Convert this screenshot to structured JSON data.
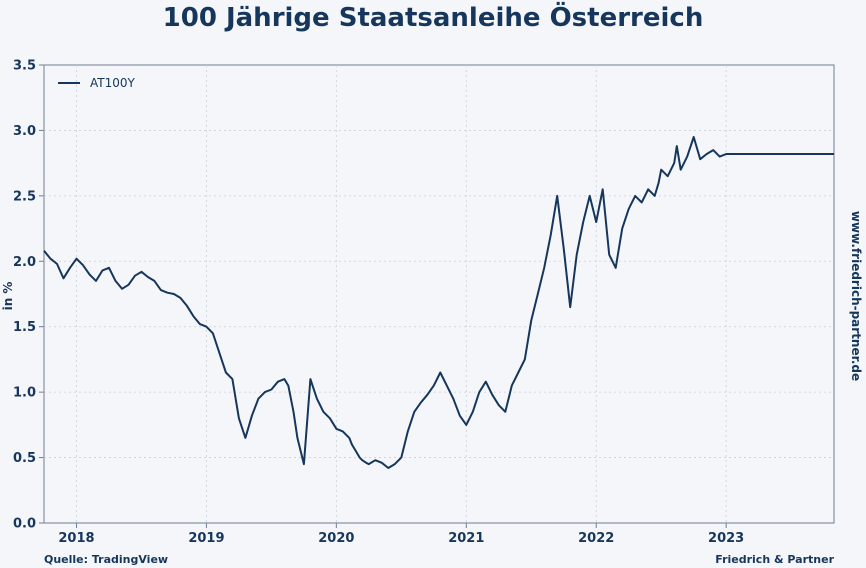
{
  "chart_data": {
    "type": "line",
    "title": "100 Jährige Staatsanleihe Österreich",
    "xlabel": "",
    "ylabel": "in %",
    "xlim": [
      2017.75,
      2023.83
    ],
    "ylim": [
      0.0,
      3.5
    ],
    "x_ticks": [
      2018,
      2019,
      2020,
      2021,
      2022,
      2023
    ],
    "x_tick_labels": [
      "2018",
      "2019",
      "2020",
      "2021",
      "2022",
      "2023"
    ],
    "y_ticks": [
      0.0,
      0.5,
      1.0,
      1.5,
      2.0,
      2.5,
      3.0,
      3.5
    ],
    "y_tick_labels": [
      "0.0",
      "0.5",
      "1.0",
      "1.5",
      "2.0",
      "2.5",
      "3.0",
      "3.5"
    ],
    "grid": true,
    "legend": "top-left",
    "series": [
      {
        "name": "AT100Y",
        "color": "#16365c",
        "x": [
          2017.75,
          2017.8,
          2017.85,
          2017.9,
          2017.95,
          2018.0,
          2018.05,
          2018.1,
          2018.15,
          2018.2,
          2018.25,
          2018.3,
          2018.35,
          2018.4,
          2018.45,
          2018.5,
          2018.55,
          2018.6,
          2018.65,
          2018.7,
          2018.75,
          2018.8,
          2018.85,
          2018.9,
          2018.95,
          2019.0,
          2019.05,
          2019.1,
          2019.15,
          2019.2,
          2019.25,
          2019.3,
          2019.35,
          2019.4,
          2019.45,
          2019.5,
          2019.55,
          2019.6,
          2019.63,
          2019.67,
          2019.7,
          2019.75,
          2019.8,
          2019.85,
          2019.9,
          2019.95,
          2020.0,
          2020.05,
          2020.1,
          2020.12,
          2020.15,
          2020.18,
          2020.2,
          2020.23,
          2020.25,
          2020.3,
          2020.35,
          2020.4,
          2020.45,
          2020.5,
          2020.55,
          2020.6,
          2020.65,
          2020.7,
          2020.75,
          2020.8,
          2020.85,
          2020.9,
          2020.95,
          2021.0,
          2021.05,
          2021.1,
          2021.15,
          2021.2,
          2021.25,
          2021.3,
          2021.35,
          2021.4,
          2021.45,
          2021.5,
          2021.55,
          2021.6,
          2021.65,
          2021.7,
          2021.75,
          2021.8,
          2021.85,
          2021.9,
          2021.95,
          2022.0,
          2022.05,
          2022.1,
          2022.15,
          2022.2,
          2022.25,
          2022.3,
          2022.35,
          2022.4,
          2022.45,
          2022.48,
          2022.5,
          2022.55,
          2022.6,
          2022.62,
          2022.65,
          2022.7,
          2022.75,
          2022.8,
          2022.85,
          2022.9,
          2022.95,
          2023.0,
          2023.05,
          2023.1,
          2023.15,
          2023.2,
          2023.25,
          2023.3,
          2023.35,
          2023.4,
          2023.45,
          2023.5,
          2023.55,
          2023.6,
          2023.65,
          2023.7,
          2023.75,
          2023.78,
          2023.8,
          2023.83
        ],
        "values": [
          2.08,
          2.02,
          1.98,
          1.87,
          1.95,
          2.02,
          1.97,
          1.9,
          1.85,
          1.93,
          1.95,
          1.85,
          1.79,
          1.82,
          1.89,
          1.92,
          1.88,
          1.85,
          1.78,
          1.76,
          1.75,
          1.72,
          1.66,
          1.58,
          1.52,
          1.5,
          1.45,
          1.3,
          1.15,
          1.1,
          0.8,
          0.65,
          0.82,
          0.95,
          1.0,
          1.02,
          1.08,
          1.1,
          1.05,
          0.85,
          0.65,
          0.45,
          1.1,
          0.95,
          0.85,
          0.8,
          0.72,
          0.7,
          0.65,
          0.6,
          0.55,
          0.5,
          0.48,
          0.46,
          0.45,
          0.48,
          0.46,
          0.42,
          0.45,
          0.5,
          0.7,
          0.85,
          0.92,
          0.98,
          1.05,
          1.15,
          1.05,
          0.95,
          0.82,
          0.75,
          0.85,
          1.0,
          1.08,
          0.98,
          0.9,
          0.85,
          1.05,
          1.15,
          1.25,
          1.55,
          1.75,
          1.95,
          2.2,
          2.5,
          2.1,
          1.65,
          2.05,
          2.3,
          2.5,
          2.3,
          2.55,
          2.05,
          1.95,
          2.25,
          2.4,
          2.5,
          2.45,
          2.55,
          2.5,
          2.6,
          2.7,
          2.65,
          2.75,
          2.88,
          2.7,
          2.8,
          2.95,
          2.78,
          2.82,
          2.85,
          2.8,
          2.82,
          2.82,
          2.82,
          2.82,
          2.82,
          2.82,
          2.82,
          2.82,
          2.82,
          2.82,
          2.82,
          2.82,
          2.82,
          2.82,
          2.82,
          2.82,
          2.82,
          2.82,
          2.82
        ]
      }
    ]
  },
  "page": {
    "side_url": "www.friedrich-partner.de",
    "source_label": "Quelle: TradingView",
    "brand_label": "Friedrich & Partner"
  }
}
